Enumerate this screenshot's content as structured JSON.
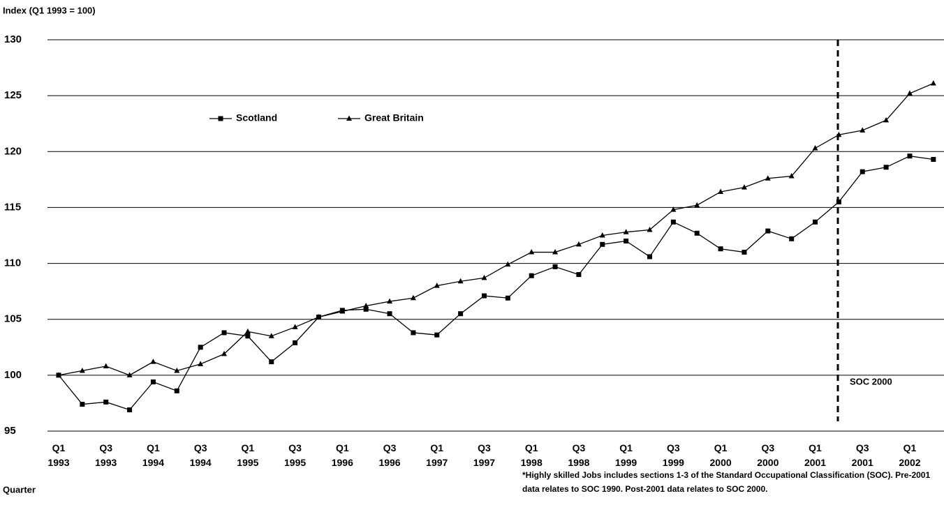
{
  "chart_data": {
    "type": "line",
    "y_label": "Index (Q1 1993 = 100)",
    "x_label": "Quarter",
    "annotation": "SOC 2000",
    "footnote": "*Highly skilled Jobs includes sections 1-3 of the Standard Occupational Classification (SOC). Pre-2001 data relates to SOC 1990. Post-2001 data relates to SOC 2000.",
    "categories": [
      "Q1 1993",
      null,
      "Q3 1993",
      null,
      "Q1 1994",
      null,
      "Q3 1994",
      null,
      "Q1 1995",
      null,
      "Q3 1995",
      null,
      "Q1 1996",
      null,
      "Q3 1996",
      null,
      "Q1 1997",
      null,
      "Q3 1997",
      null,
      "Q1 1998",
      null,
      "Q3 1998",
      null,
      "Q1 1999",
      null,
      "Q3 1999",
      null,
      "Q1 2000",
      null,
      "Q3 2000",
      null,
      "Q1 2001",
      null,
      "Q3 2001",
      null,
      "Q1 2002",
      null
    ],
    "series": [
      {
        "name": "Scotland",
        "color": "#000000",
        "marker": "square",
        "values": [
          100,
          97.4,
          97.6,
          96.9,
          99.4,
          98.6,
          102.5,
          103.8,
          103.5,
          101.2,
          102.9,
          105.2,
          105.8,
          105.9,
          105.5,
          103.8,
          103.6,
          105.5,
          107.1,
          106.9,
          108.9,
          109.7,
          109.0,
          111.7,
          112.0,
          110.6,
          113.7,
          112.7,
          111.3,
          111.0,
          112.9,
          112.2,
          113.7,
          115.5,
          118.2,
          118.6,
          119.6,
          119.3
        ]
      },
      {
        "name": "Great Britain",
        "color": "#000000",
        "marker": "triangle",
        "values": [
          100,
          100.4,
          100.8,
          100.0,
          101.2,
          100.4,
          101.0,
          101.9,
          103.9,
          103.5,
          104.3,
          105.2,
          105.7,
          106.2,
          106.6,
          106.9,
          108.0,
          108.4,
          108.7,
          109.9,
          111.0,
          111.0,
          111.7,
          112.5,
          112.8,
          113.0,
          114.8,
          115.2,
          116.4,
          116.8,
          117.6,
          117.8,
          120.3,
          121.5,
          121.9,
          122.8,
          125.2,
          126.1
        ]
      }
    ],
    "ylim": [
      95,
      130
    ],
    "yticks": [
      95,
      100,
      105,
      110,
      115,
      120,
      125,
      130
    ],
    "grid": true
  }
}
